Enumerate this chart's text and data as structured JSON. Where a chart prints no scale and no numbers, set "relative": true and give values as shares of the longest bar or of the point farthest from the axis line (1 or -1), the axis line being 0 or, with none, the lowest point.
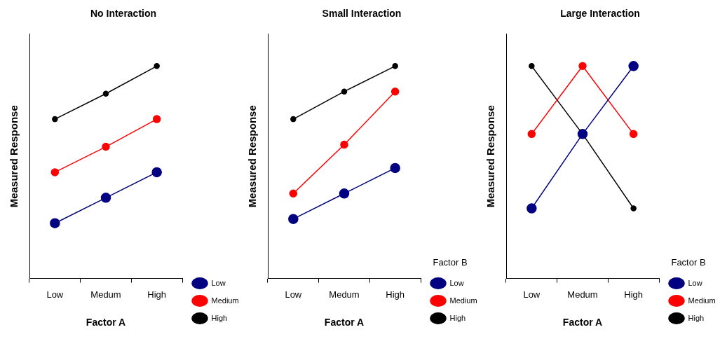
{
  "chart_data": [
    {
      "type": "line",
      "title": "No Interaction",
      "xlabel": "Factor A",
      "ylabel": "Measured Response",
      "categories": [
        "Low",
        "Medum",
        "High"
      ],
      "relative": true,
      "legend": "right",
      "marker": "circle",
      "grid": false,
      "series": [
        {
          "name": "Low",
          "color": "#000080",
          "values": [
            0.26,
            0.38,
            0.5
          ]
        },
        {
          "name": "Medium",
          "color": "#ff0000",
          "values": [
            0.5,
            0.62,
            0.75
          ]
        },
        {
          "name": "High",
          "color": "#000000",
          "values": [
            0.75,
            0.87,
            1
          ]
        }
      ]
    },
    {
      "type": "line",
      "title": "Small Interaction",
      "xlabel": "Factor A",
      "ylabel": "Measured Response",
      "legend_title": "Factor B",
      "categories": [
        "Low",
        "Medum",
        "High"
      ],
      "relative": true,
      "legend": "right",
      "marker": "circle",
      "grid": false,
      "series": [
        {
          "name": "Low",
          "color": "#000080",
          "values": [
            0.28,
            0.4,
            0.52
          ]
        },
        {
          "name": "Medium",
          "color": "#ff0000",
          "values": [
            0.4,
            0.63,
            0.88
          ]
        },
        {
          "name": "High",
          "color": "#000000",
          "values": [
            0.75,
            0.88,
            1
          ]
        }
      ]
    },
    {
      "type": "line",
      "title": "Large Interaction",
      "xlabel": "Factor A",
      "ylabel": "Measured Response",
      "legend_title": "Factor B",
      "categories": [
        "Low",
        "Medum",
        "High"
      ],
      "relative": true,
      "legend": "right",
      "marker": "circle",
      "grid": false,
      "series": [
        {
          "name": "Low",
          "color": "#000080",
          "values": [
            0.33,
            0.68,
            1
          ]
        },
        {
          "name": "Medium",
          "color": "#ff0000",
          "values": [
            0.68,
            1,
            0.68
          ]
        },
        {
          "name": "High",
          "color": "#000000",
          "values": [
            1,
            0.68,
            0.33
          ]
        }
      ]
    }
  ]
}
